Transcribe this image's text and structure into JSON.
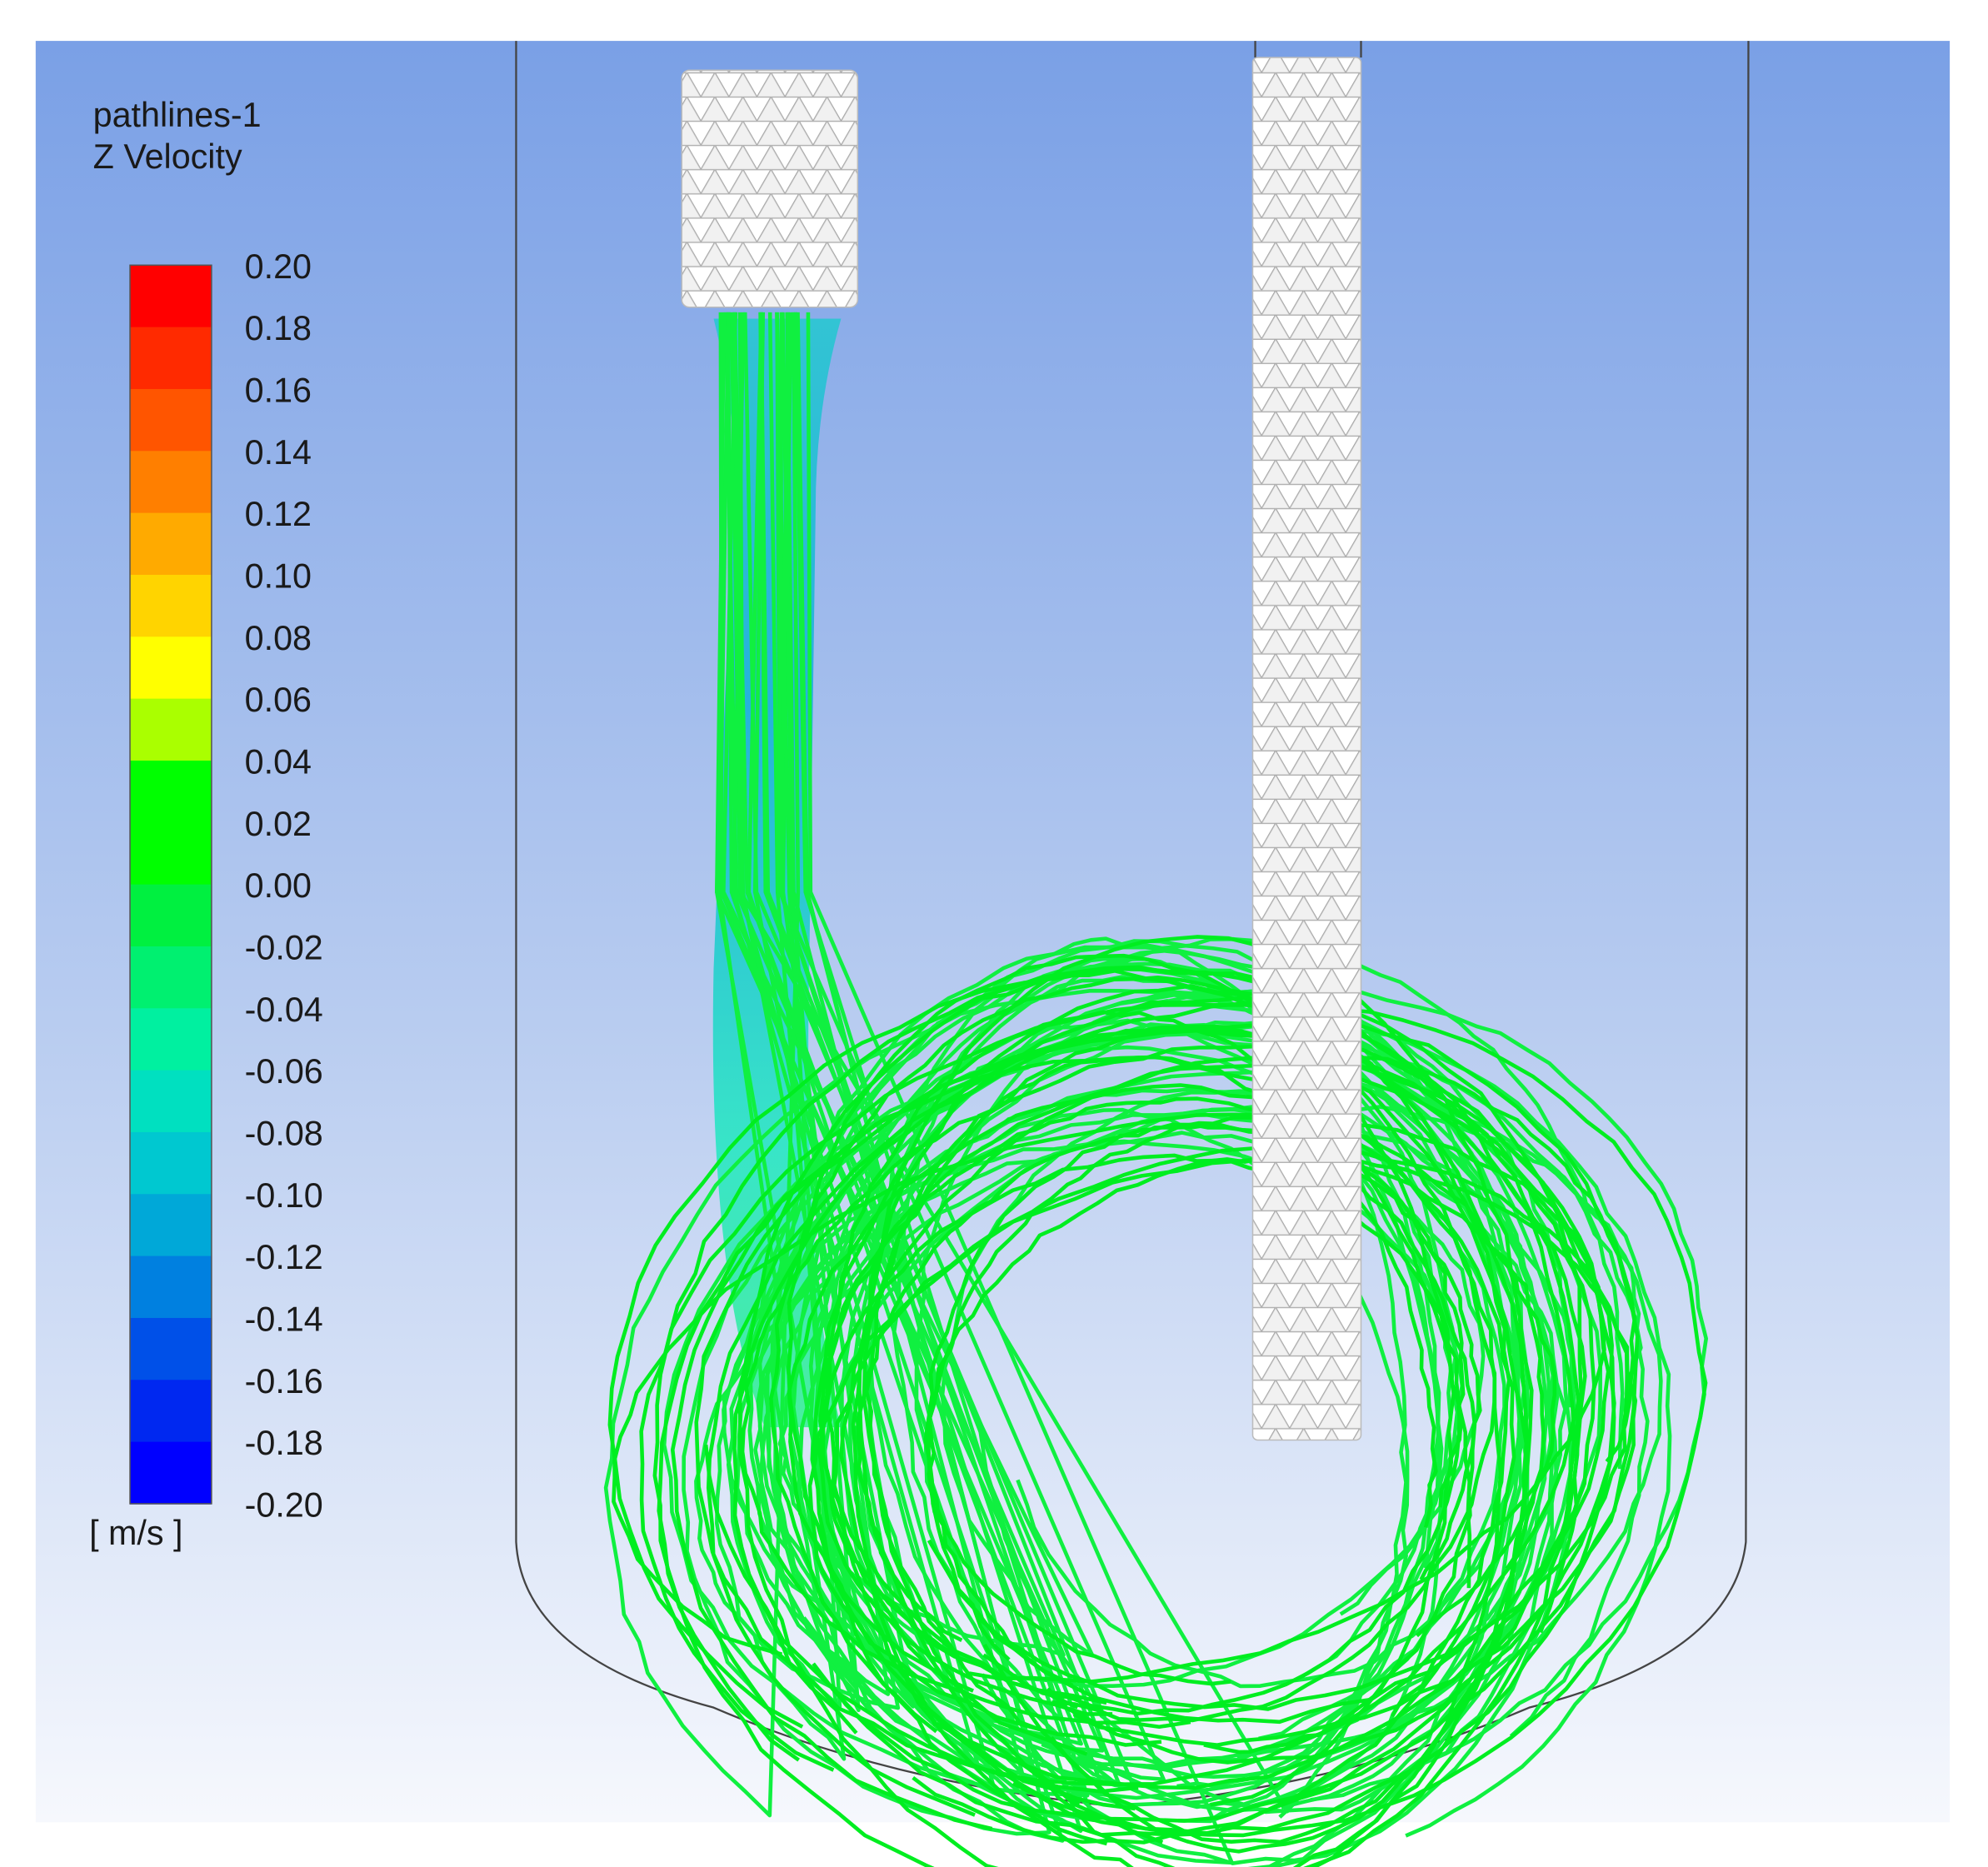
{
  "legend": {
    "title": "pathlines-1",
    "quantity": "Z Velocity",
    "unit": "[ m/s ]",
    "ticks": [
      "0.20",
      "0.18",
      "0.16",
      "0.14",
      "0.12",
      "0.10",
      "0.08",
      "0.06",
      "0.04",
      "0.02",
      "0.00",
      "-0.02",
      "-0.04",
      "-0.06",
      "-0.08",
      "-0.10",
      "-0.12",
      "-0.14",
      "-0.16",
      "-0.18",
      "-0.20"
    ],
    "colors": [
      "#ff0000",
      "#ff2a00",
      "#ff5500",
      "#ff7f00",
      "#ffaa00",
      "#ffd400",
      "#ffff00",
      "#aaff00",
      "#00ff00",
      "#00ff00",
      "#00f040",
      "#00f070",
      "#00f0a0",
      "#00e0c0",
      "#00c8d0",
      "#00a8d8",
      "#0080e0",
      "#0050e8",
      "#0028f0",
      "#0000ff"
    ]
  }
}
